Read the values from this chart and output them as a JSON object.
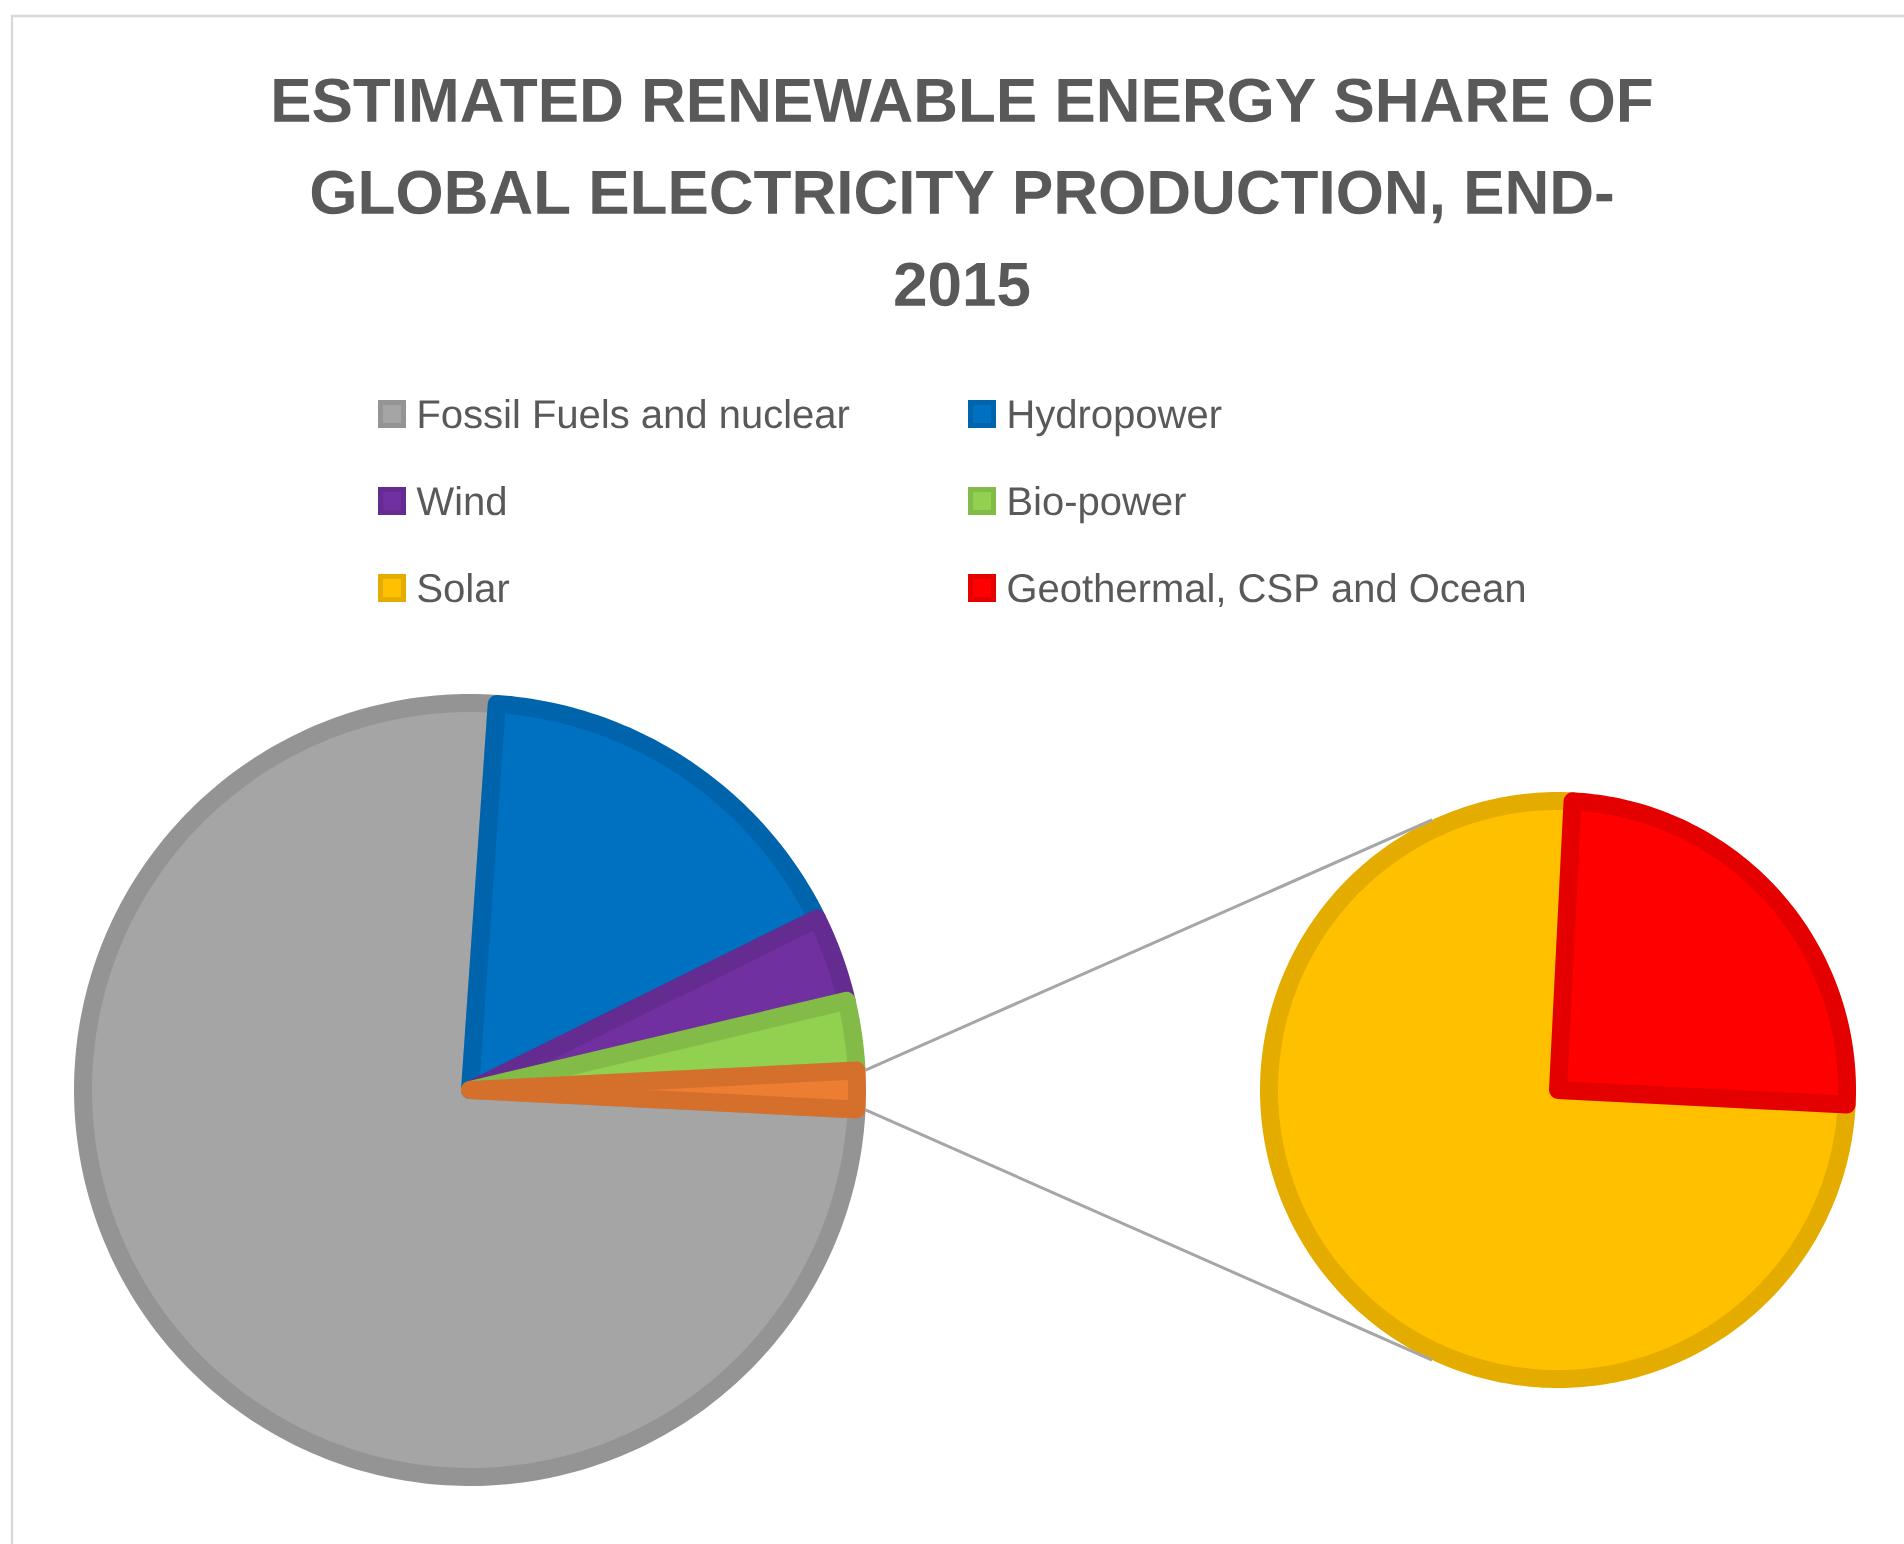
{
  "chart_data": [
    {
      "type": "pie",
      "title": "ESTIMATED RENEWABLE ENERGY SHARE OF GLOBAL ELECTRICITY PRODUCTION, END-2015",
      "categories": [
        "Fossil Fuels and nuclear",
        "Hydropower",
        "Wind",
        "Bio-power",
        null
      ],
      "values": [
        75.3,
        16.6,
        3.6,
        2.9,
        1.6
      ],
      "colors": [
        "#a5a5a5",
        "#0070c0",
        "#7030a0",
        "#92d050",
        "#ed7d31"
      ],
      "legend": "top"
    },
    {
      "type": "pie",
      "categories": [
        "Solar",
        "Geothermal, CSP and Ocean"
      ],
      "values": [
        75,
        25
      ],
      "colors": [
        "#ffc000",
        "#ff0000"
      ],
      "legend": "top"
    }
  ]
}
